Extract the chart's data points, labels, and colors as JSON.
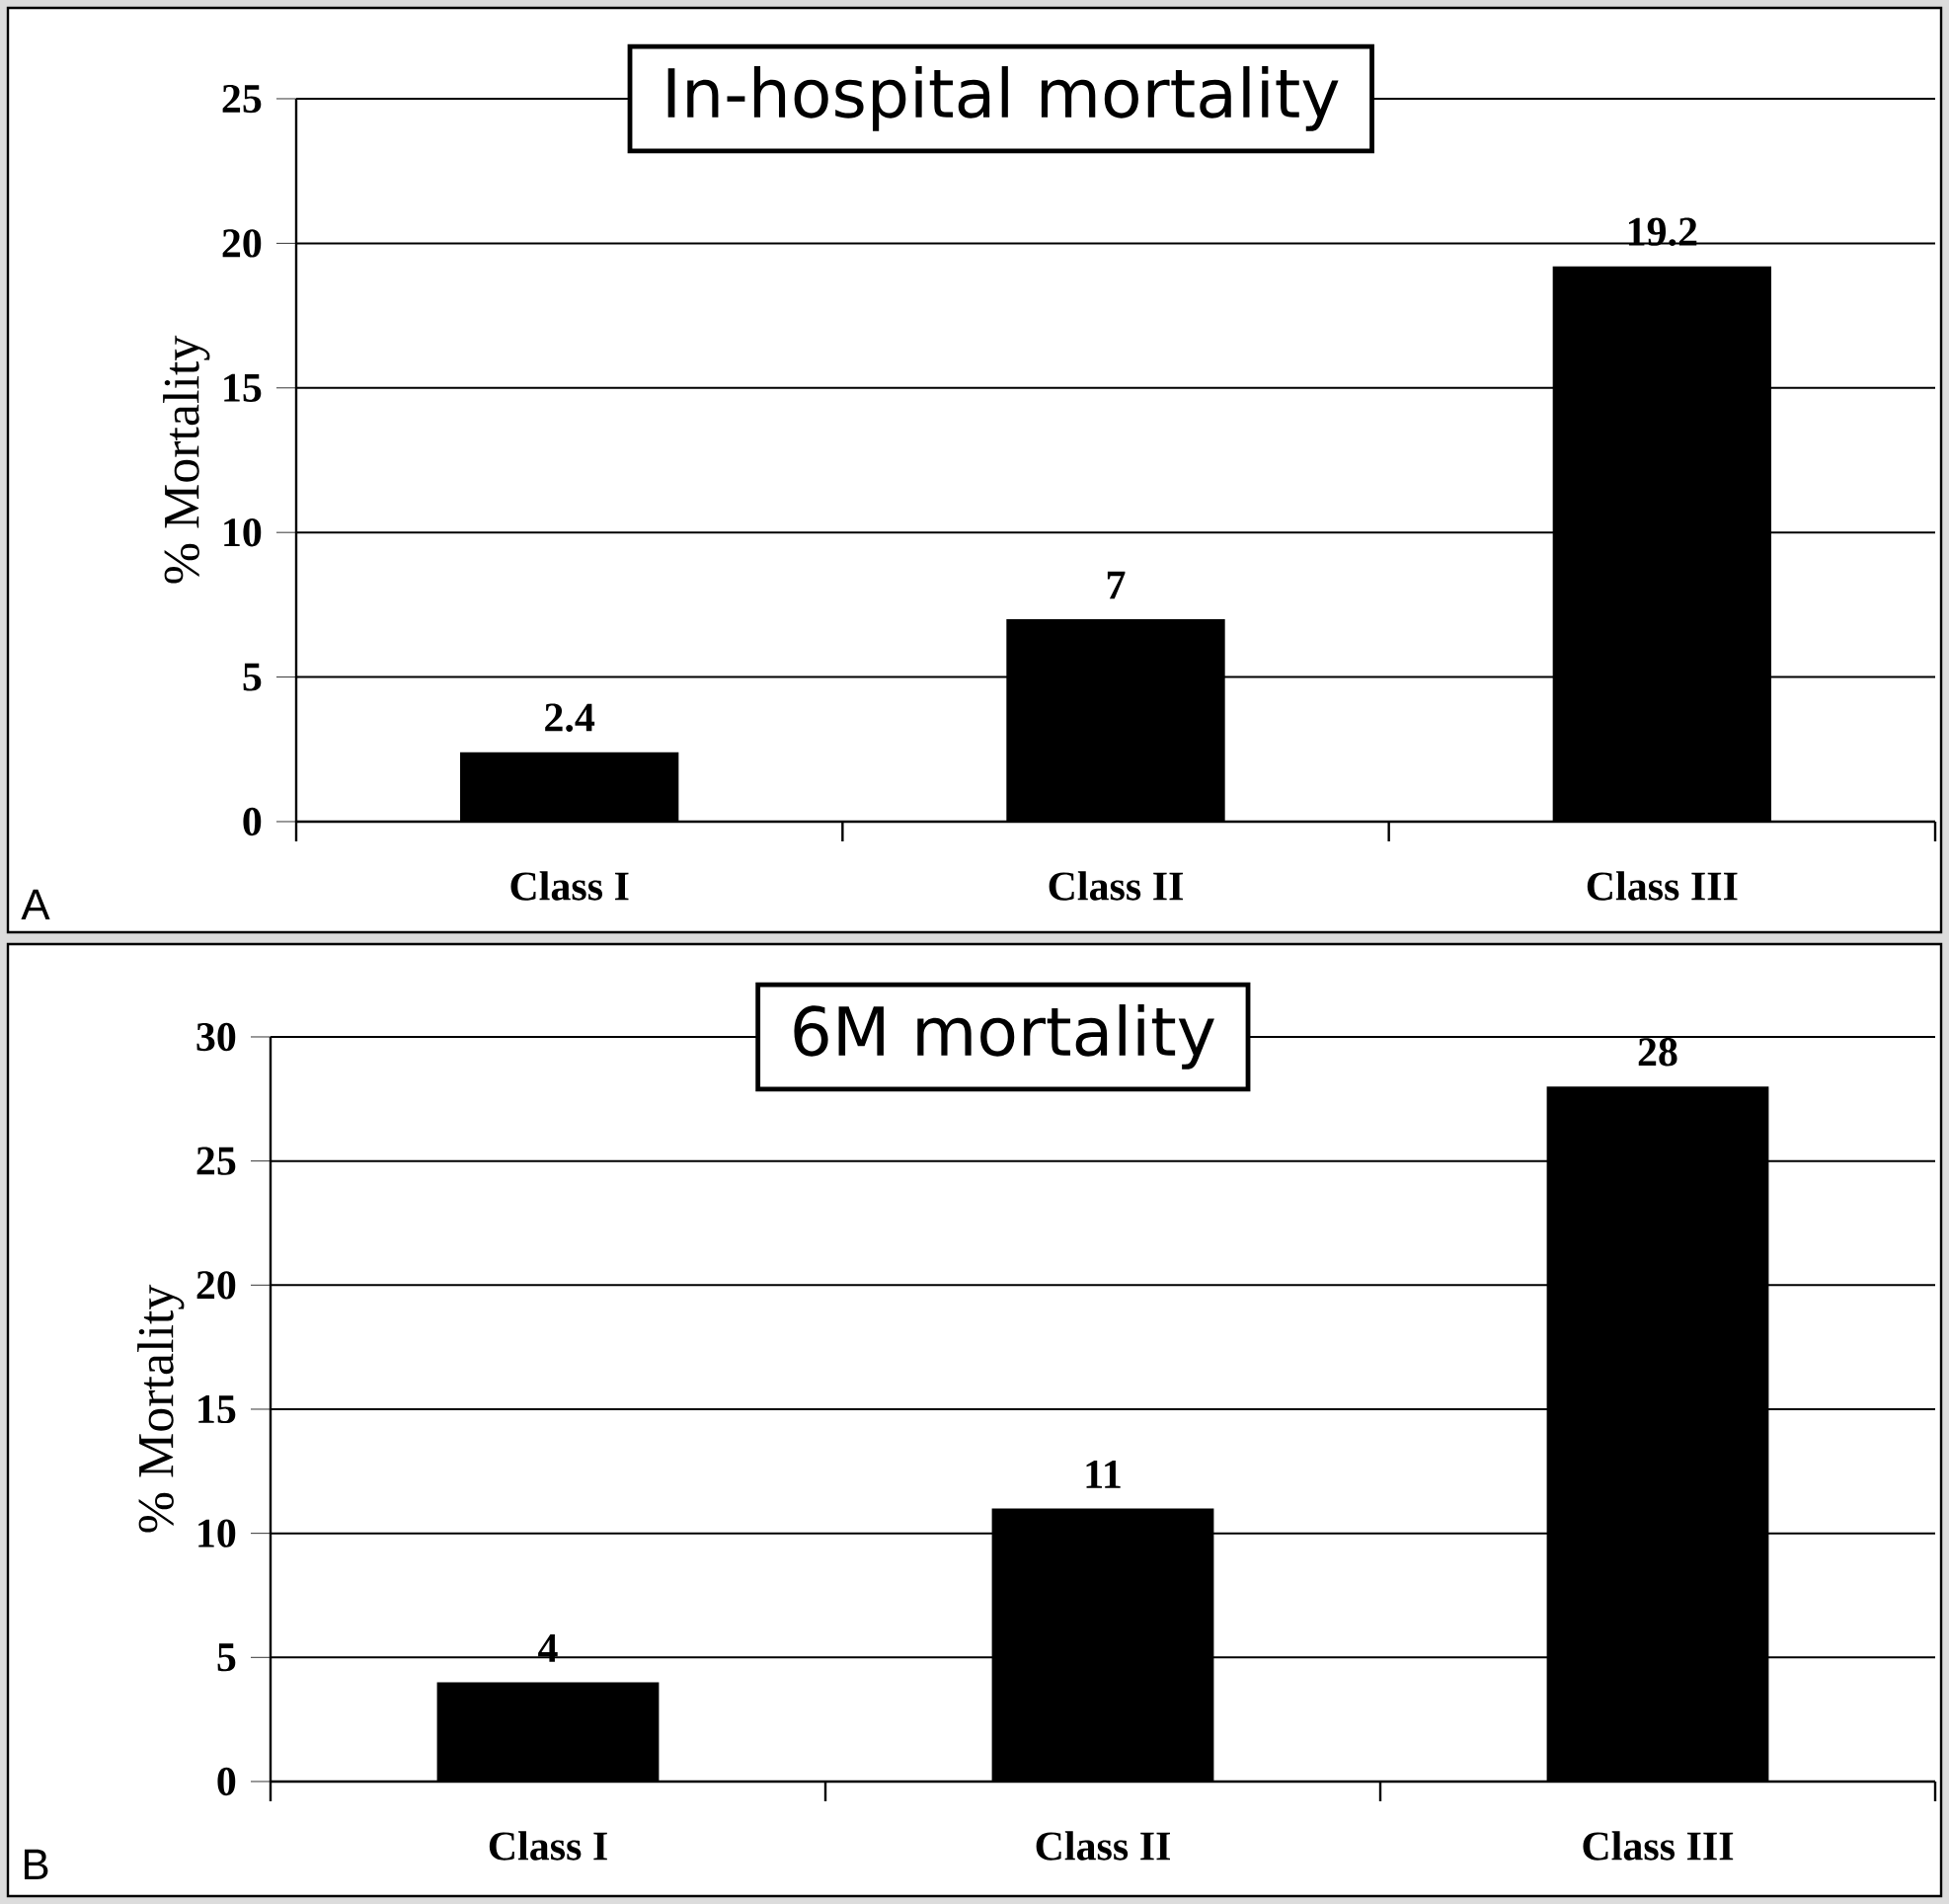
{
  "chart_data": [
    {
      "type": "bar",
      "title": "In-hospital mortality",
      "ylabel": "% Mortality",
      "categories": [
        "Class I",
        "Class II",
        "Class III"
      ],
      "values": [
        2.4,
        7,
        19.2
      ],
      "color": "#000000",
      "ylim": [
        0,
        25
      ],
      "yticks": [
        0,
        5,
        10,
        15,
        20,
        25
      ],
      "grid": "y",
      "data_labels": true,
      "annotations": [
        "A"
      ]
    },
    {
      "type": "bar",
      "title": "6M mortality",
      "ylabel": "% Mortality",
      "categories": [
        "Class I",
        "Class II",
        "Class III"
      ],
      "values": [
        4,
        11,
        28
      ],
      "color": "#000000",
      "ylim": [
        0,
        30
      ],
      "yticks": [
        0,
        5,
        10,
        15,
        20,
        25,
        30
      ],
      "grid": "y",
      "data_labels": true,
      "annotations": [
        "B"
      ]
    }
  ]
}
